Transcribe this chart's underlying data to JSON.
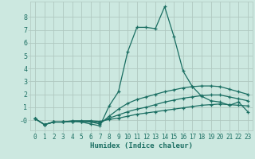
{
  "xlabel": "Humidex (Indice chaleur)",
  "background_color": "#cce8e0",
  "grid_color": "#b0c8c0",
  "line_color": "#1a6e62",
  "xlim": [
    -0.5,
    23.5
  ],
  "ylim": [
    -0.8,
    9.2
  ],
  "xtick_labels": [
    "0",
    "1",
    "2",
    "3",
    "4",
    "5",
    "6",
    "7",
    "8",
    "9",
    "10",
    "11",
    "12",
    "13",
    "14",
    "15",
    "16",
    "17",
    "18",
    "19",
    "20",
    "21",
    "22",
    "23"
  ],
  "xtick_vals": [
    0,
    1,
    2,
    3,
    4,
    5,
    6,
    7,
    8,
    9,
    10,
    11,
    12,
    13,
    14,
    15,
    16,
    17,
    18,
    19,
    20,
    21,
    22,
    23
  ],
  "ytick_vals": [
    0,
    1,
    2,
    3,
    4,
    5,
    6,
    7,
    8
  ],
  "ytick_labels": [
    "-0",
    "1",
    "2",
    "3",
    "4",
    "5",
    "6",
    "7",
    "8"
  ],
  "series": [
    {
      "x": [
        0,
        1,
        2,
        3,
        4,
        5,
        6,
        7,
        8,
        9,
        10,
        11,
        12,
        13,
        14,
        15,
        16,
        17,
        18,
        19,
        20,
        21,
        22,
        23
      ],
      "y": [
        0.1,
        -0.35,
        -0.15,
        -0.15,
        -0.1,
        -0.15,
        -0.3,
        -0.45,
        1.1,
        2.2,
        5.3,
        7.2,
        7.2,
        7.1,
        8.8,
        6.5,
        3.8,
        2.6,
        1.85,
        1.5,
        1.4,
        1.15,
        1.4,
        0.65
      ]
    },
    {
      "x": [
        0,
        1,
        2,
        3,
        4,
        5,
        6,
        7,
        8,
        9,
        10,
        11,
        12,
        13,
        14,
        15,
        16,
        17,
        18,
        19,
        20,
        21,
        22,
        23
      ],
      "y": [
        0.1,
        -0.35,
        -0.15,
        -0.15,
        -0.1,
        -0.1,
        -0.15,
        -0.3,
        0.3,
        0.85,
        1.3,
        1.6,
        1.8,
        2.0,
        2.2,
        2.35,
        2.5,
        2.6,
        2.65,
        2.65,
        2.6,
        2.4,
        2.2,
        2.0
      ]
    },
    {
      "x": [
        0,
        1,
        2,
        3,
        4,
        5,
        6,
        7,
        8,
        9,
        10,
        11,
        12,
        13,
        14,
        15,
        16,
        17,
        18,
        19,
        20,
        21,
        22,
        23
      ],
      "y": [
        0.1,
        -0.35,
        -0.15,
        -0.15,
        -0.1,
        -0.1,
        -0.1,
        -0.2,
        0.15,
        0.4,
        0.65,
        0.85,
        1.0,
        1.2,
        1.4,
        1.55,
        1.7,
        1.8,
        1.9,
        1.95,
        1.95,
        1.8,
        1.65,
        1.5
      ]
    },
    {
      "x": [
        0,
        1,
        2,
        3,
        4,
        5,
        6,
        7,
        8,
        9,
        10,
        11,
        12,
        13,
        14,
        15,
        16,
        17,
        18,
        19,
        20,
        21,
        22,
        23
      ],
      "y": [
        0.1,
        -0.35,
        -0.15,
        -0.15,
        -0.05,
        -0.05,
        -0.05,
        -0.1,
        0.05,
        0.15,
        0.3,
        0.45,
        0.55,
        0.65,
        0.75,
        0.85,
        0.95,
        1.05,
        1.15,
        1.2,
        1.25,
        1.2,
        1.15,
        1.1
      ]
    }
  ]
}
